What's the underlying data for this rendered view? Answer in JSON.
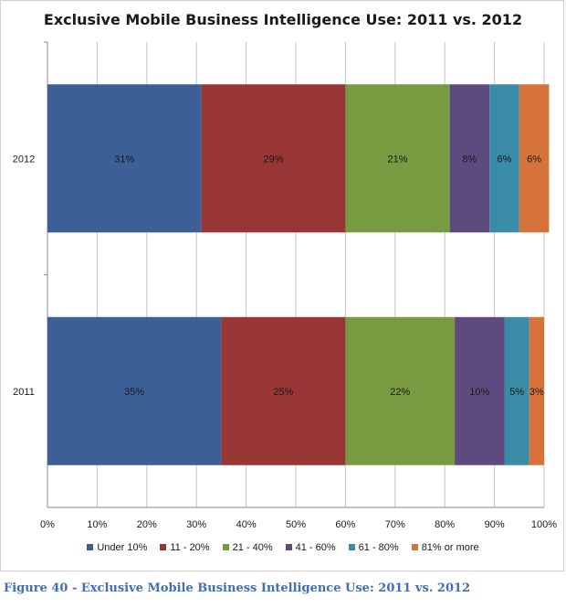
{
  "chart_data": {
    "type": "bar",
    "orientation": "horizontal",
    "stacked": true,
    "title": "Exclusive Mobile Business Intelligence Use: 2011 vs. 2012",
    "categories": [
      "2012",
      "2011"
    ],
    "series": [
      {
        "name": "Under 10%",
        "color": "#3c5f96",
        "values": [
          31,
          35
        ],
        "labels": [
          "31%",
          "35%"
        ]
      },
      {
        "name": "11 - 20%",
        "color": "#983535",
        "values": [
          29,
          25
        ],
        "labels": [
          "29%",
          "25%"
        ]
      },
      {
        "name": "21 - 40%",
        "color": "#789a40",
        "values": [
          21,
          22
        ],
        "labels": [
          "21%",
          "22%"
        ]
      },
      {
        "name": "41 - 60%",
        "color": "#5f4a80",
        "values": [
          8,
          10
        ],
        "labels": [
          "8%",
          "10%"
        ]
      },
      {
        "name": "61 - 80%",
        "color": "#3a8ba5",
        "values": [
          6,
          5
        ],
        "labels": [
          "6%",
          "5%"
        ]
      },
      {
        "name": "81% or more",
        "color": "#d6733a",
        "values": [
          6,
          3
        ],
        "labels": [
          "6%",
          "3%"
        ]
      }
    ],
    "xlim": [
      0,
      100
    ],
    "xticks": [
      "0%",
      "10%",
      "20%",
      "30%",
      "40%",
      "50%",
      "60%",
      "70%",
      "80%",
      "90%",
      "100%"
    ],
    "grid": true,
    "legend_position": "bottom"
  },
  "caption": "Figure 40 - Exclusive Mobile Business Intelligence Use: 2011 vs. 2012"
}
